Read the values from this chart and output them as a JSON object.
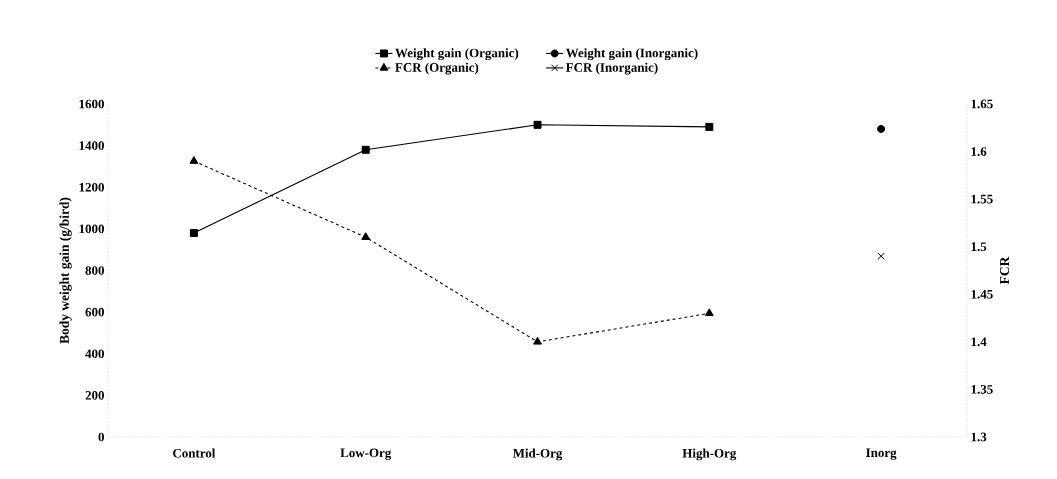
{
  "chart_data": {
    "type": "line",
    "categories": [
      "Control",
      "Low-Org",
      "Mid-Org",
      "High-Org",
      "Inorg"
    ],
    "ylabel": "Body weight gain (g/bird)",
    "y2label": "FCR",
    "ylim": [
      0,
      1600
    ],
    "yticks": [
      0,
      200,
      400,
      600,
      800,
      1000,
      1200,
      1400,
      1600
    ],
    "y2lim": [
      1.3,
      1.65
    ],
    "y2ticks": [
      1.3,
      1.35,
      1.4,
      1.45,
      1.5,
      1.55,
      1.6,
      1.65
    ],
    "legend": "top",
    "series": [
      {
        "name": "Weight gain (Organic)",
        "color": "#000000",
        "marker": "square",
        "line_style": "solid",
        "values": [
          980,
          1380,
          1500,
          1490,
          null
        ]
      },
      {
        "name": "Weight gain (Inorganic)",
        "color": "#000000",
        "marker": "circle",
        "line_style": "solid",
        "values": [
          null,
          null,
          null,
          null,
          1480
        ]
      },
      {
        "name": "FCR (Organic)",
        "color": "#000000",
        "marker": "triangle",
        "line_style": "dashed",
        "axis": "y2",
        "values": [
          1.59,
          1.51,
          1.4,
          1.43,
          null
        ]
      },
      {
        "name": "FCR (Inorganic)",
        "color": "#000000",
        "marker": "cross",
        "line_style": "solid",
        "axis": "y2",
        "values": [
          null,
          null,
          null,
          null,
          1.49
        ]
      }
    ]
  }
}
